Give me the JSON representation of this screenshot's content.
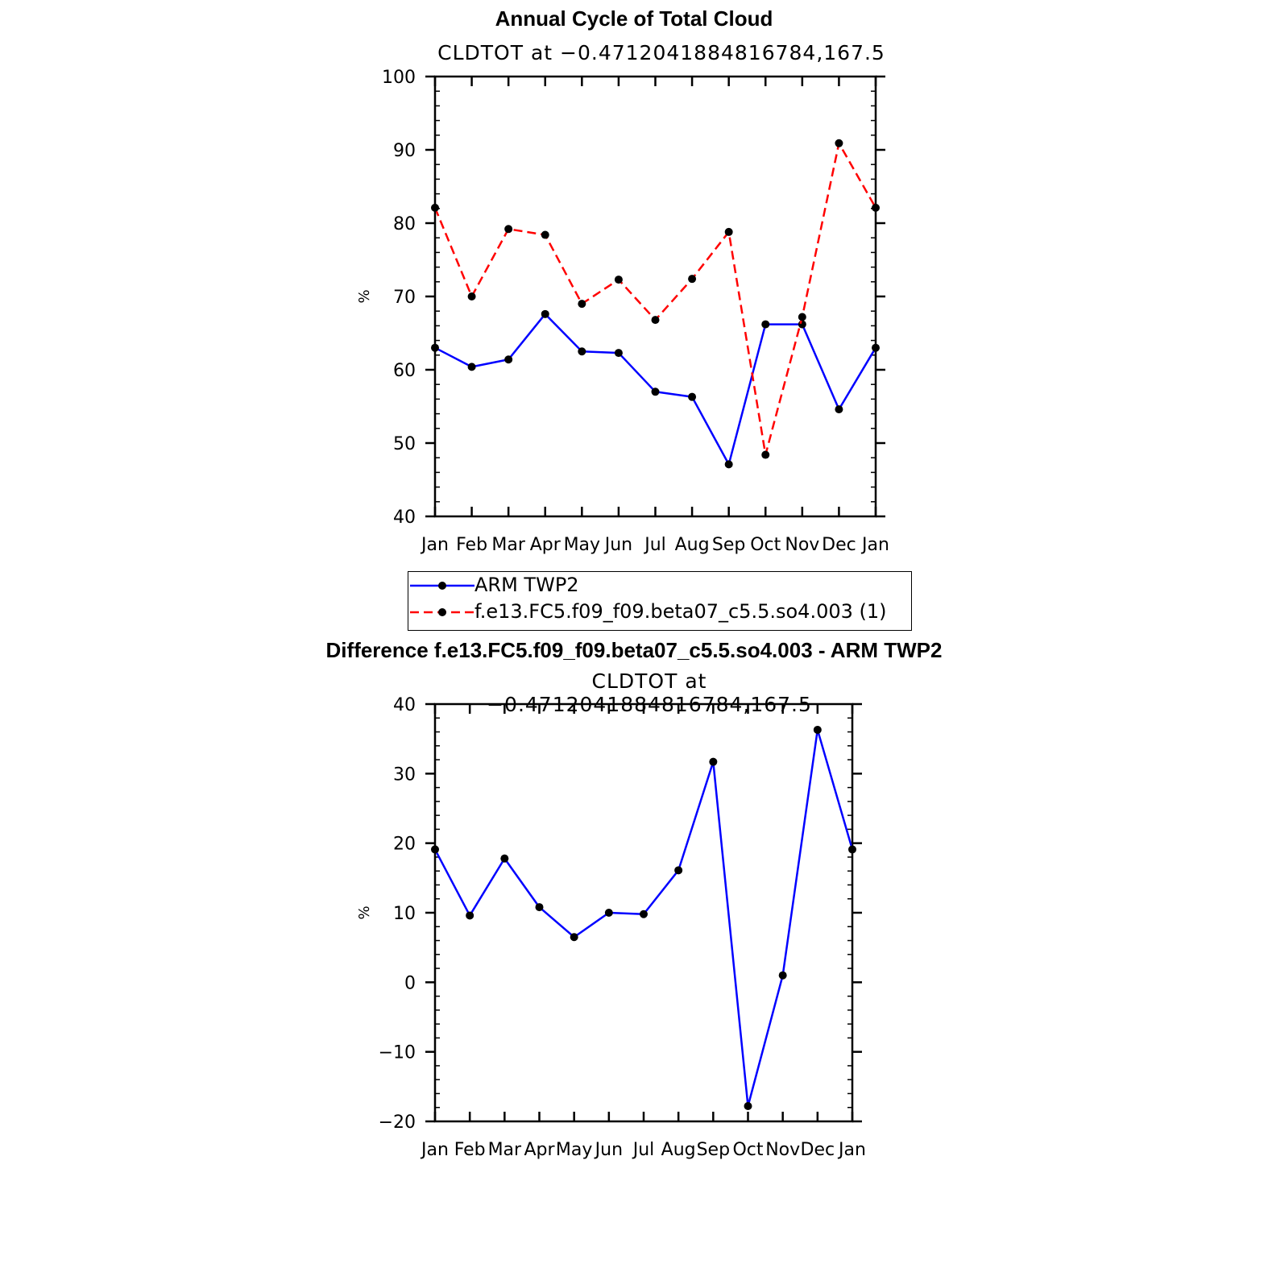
{
  "chart_data": [
    {
      "type": "line",
      "title": "Annual Cycle of Total Cloud",
      "subtitle": "CLDTOT at −0.4712041884816784,167.5",
      "ylabel": "%",
      "xlabel": "",
      "ylim": [
        40,
        100
      ],
      "yticks": [
        "40",
        "50",
        "60",
        "70",
        "80",
        "90",
        "100"
      ],
      "categories": [
        "Jan",
        "Feb",
        "Mar",
        "Apr",
        "May",
        "Jun",
        "Jul",
        "Aug",
        "Sep",
        "Oct",
        "Nov",
        "Dec",
        "Jan"
      ],
      "series": [
        {
          "name": "ARM TWP2",
          "color": "#0000ff",
          "style": "solid",
          "values": [
            63.0,
            60.4,
            61.4,
            67.6,
            62.5,
            62.3,
            57.0,
            56.3,
            47.1,
            66.2,
            66.2,
            54.6,
            63.0
          ]
        },
        {
          "name": "f.e13.FC5.f09_f09.beta07_c5.5.so4.003 (1)",
          "color": "#ff0000",
          "style": "dashed",
          "values": [
            82.1,
            70.0,
            79.2,
            78.4,
            69.0,
            72.3,
            66.8,
            72.4,
            78.8,
            48.4,
            67.2,
            90.9,
            82.1
          ]
        }
      ],
      "legend": "bottom"
    },
    {
      "type": "line",
      "title": "Difference f.e13.FC5.f09_f09.beta07_c5.5.so4.003 - ARM TWP2",
      "subtitle": "CLDTOT at −0.4712041884816784,167.5",
      "ylabel": "%",
      "xlabel": "",
      "ylim": [
        -20,
        40
      ],
      "yticks": [
        "−20",
        "−10",
        "0",
        "10",
        "20",
        "30",
        "40"
      ],
      "categories": [
        "Jan",
        "Feb",
        "Mar",
        "Apr",
        "May",
        "Jun",
        "Jul",
        "Aug",
        "Sep",
        "Oct",
        "Nov",
        "Dec",
        "Jan"
      ],
      "series": [
        {
          "color": "#0000ff",
          "style": "solid",
          "values": [
            19.1,
            9.6,
            17.8,
            10.8,
            6.5,
            10.0,
            9.8,
            16.1,
            31.7,
            -17.8,
            1.0,
            36.3,
            19.1
          ]
        }
      ]
    }
  ]
}
